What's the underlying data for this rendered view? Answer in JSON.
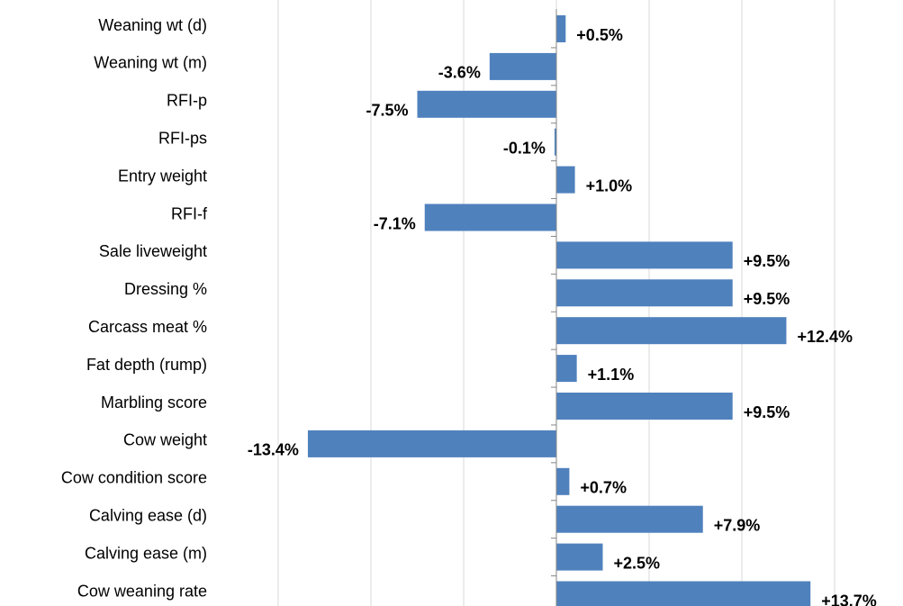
{
  "chart_data": {
    "type": "barh",
    "categories": [
      "Weaning wt (d)",
      "Weaning wt (m)",
      "RFI-p",
      "RFI-ps",
      "Entry weight",
      "RFI-f",
      "Sale liveweight",
      "Dressing %",
      "Carcass meat %",
      "Fat depth (rump)",
      "Marbling score",
      "Cow weight",
      "Cow condition score",
      "Calving ease (d)",
      "Calving ease (m)",
      "Cow weaning rate"
    ],
    "values": [
      0.5,
      -3.6,
      -7.5,
      -0.1,
      1.0,
      -7.1,
      9.5,
      9.5,
      12.4,
      1.1,
      9.5,
      -13.4,
      0.7,
      7.9,
      2.5,
      13.7
    ],
    "value_labels": [
      "+0.5%",
      "-3.6%",
      "-7.5%",
      "-0.1%",
      "+1.0%",
      "-7.1%",
      "+9.5%",
      "+9.5%",
      "+12.4%",
      "+1.1%",
      "+9.5%",
      "-13.4%",
      "+0.7%",
      "+7.9%",
      "+2.5%",
      "+13.7%"
    ],
    "color": "#4f81bd",
    "xlim": [
      -15,
      15
    ],
    "xticks": [
      -15,
      -10,
      -5,
      0,
      5,
      10,
      15
    ],
    "grid": true
  }
}
